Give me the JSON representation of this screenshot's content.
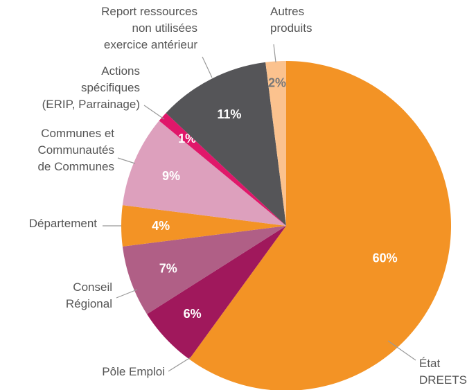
{
  "chart_data": {
    "type": "pie",
    "categories": [
      "État\nDREETS",
      "Pôle Emploi",
      "Conseil\nRégional",
      "Département",
      "Communes et\nCommunautés\nde Communes",
      "Actions\nspécifiques\n(ERIP, Parrainage)",
      "Report ressources\nnon utilisées\nexercice antérieur",
      "Autres\nproduits"
    ],
    "values": [
      60,
      6,
      7,
      4,
      9,
      1,
      11,
      2
    ],
    "value_labels": [
      "60%",
      "6%",
      "7%",
      "4%",
      "9%",
      "1%",
      "11%",
      "2%"
    ],
    "colors": [
      "#f39325",
      "#a0185c",
      "#b05f86",
      "#f39325",
      "#dda0bd",
      "#e0176a",
      "#555558",
      "#fbc28e"
    ],
    "value_label_colors": [
      "#ffffff",
      "#ffffff",
      "#ffffff",
      "#ffffff",
      "#ffffff",
      "#ffffff",
      "#ffffff",
      "#777777"
    ]
  }
}
